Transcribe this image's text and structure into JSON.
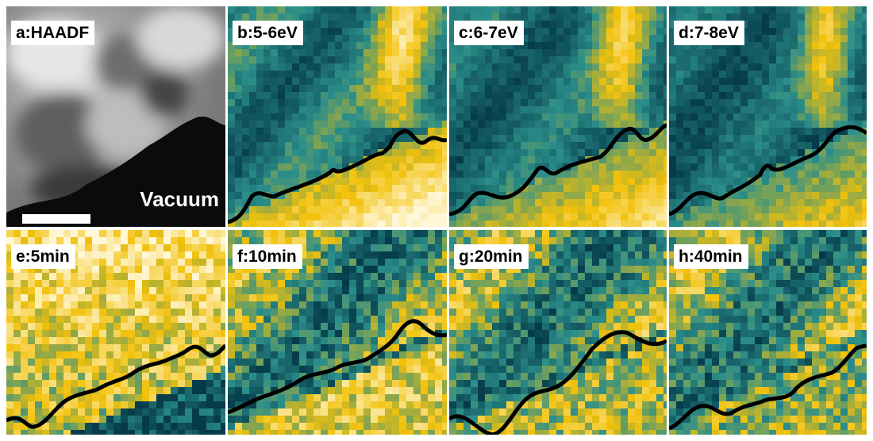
{
  "colors": {
    "low": "#053b4a",
    "mid": "#2b8e8a",
    "high": "#f2c10a",
    "peak": "#fff7d6",
    "boundary": "#000000"
  },
  "panels": [
    {
      "id": "a",
      "label": "a:HAADF",
      "type": "haadf",
      "annotation": "Vacuum"
    },
    {
      "id": "b",
      "label": "b:5-6eV",
      "type": "map"
    },
    {
      "id": "c",
      "label": "c:6-7eV",
      "type": "map"
    },
    {
      "id": "d",
      "label": "d:7-8eV",
      "type": "map"
    },
    {
      "id": "e",
      "label": "e:5min",
      "type": "map"
    },
    {
      "id": "f",
      "label": "f:10min",
      "type": "map"
    },
    {
      "id": "g",
      "label": "g:20min",
      "type": "map"
    },
    {
      "id": "h",
      "label": "h:40min",
      "type": "map"
    }
  ]
}
